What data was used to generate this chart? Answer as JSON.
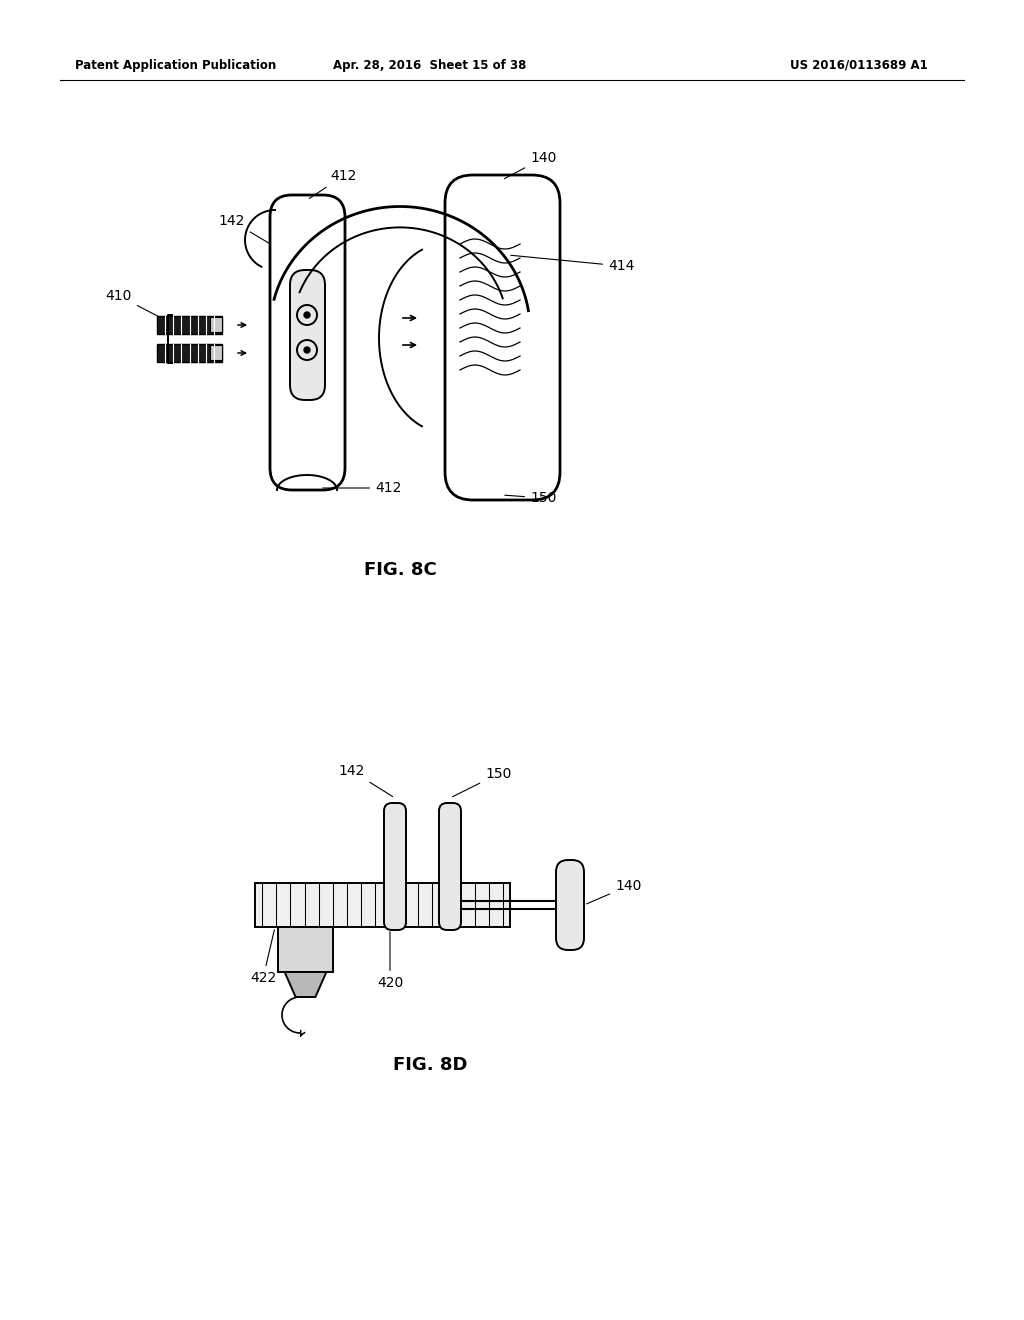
{
  "bg_color": "#ffffff",
  "line_color": "#000000",
  "header_left": "Patent Application Publication",
  "header_mid": "Apr. 28, 2016  Sheet 15 of 38",
  "header_right": "US 2016/0113689 A1",
  "fig8c_label": "FIG. 8C",
  "fig8d_label": "FIG. 8D",
  "lw": 1.4,
  "lw_thick": 2.0
}
